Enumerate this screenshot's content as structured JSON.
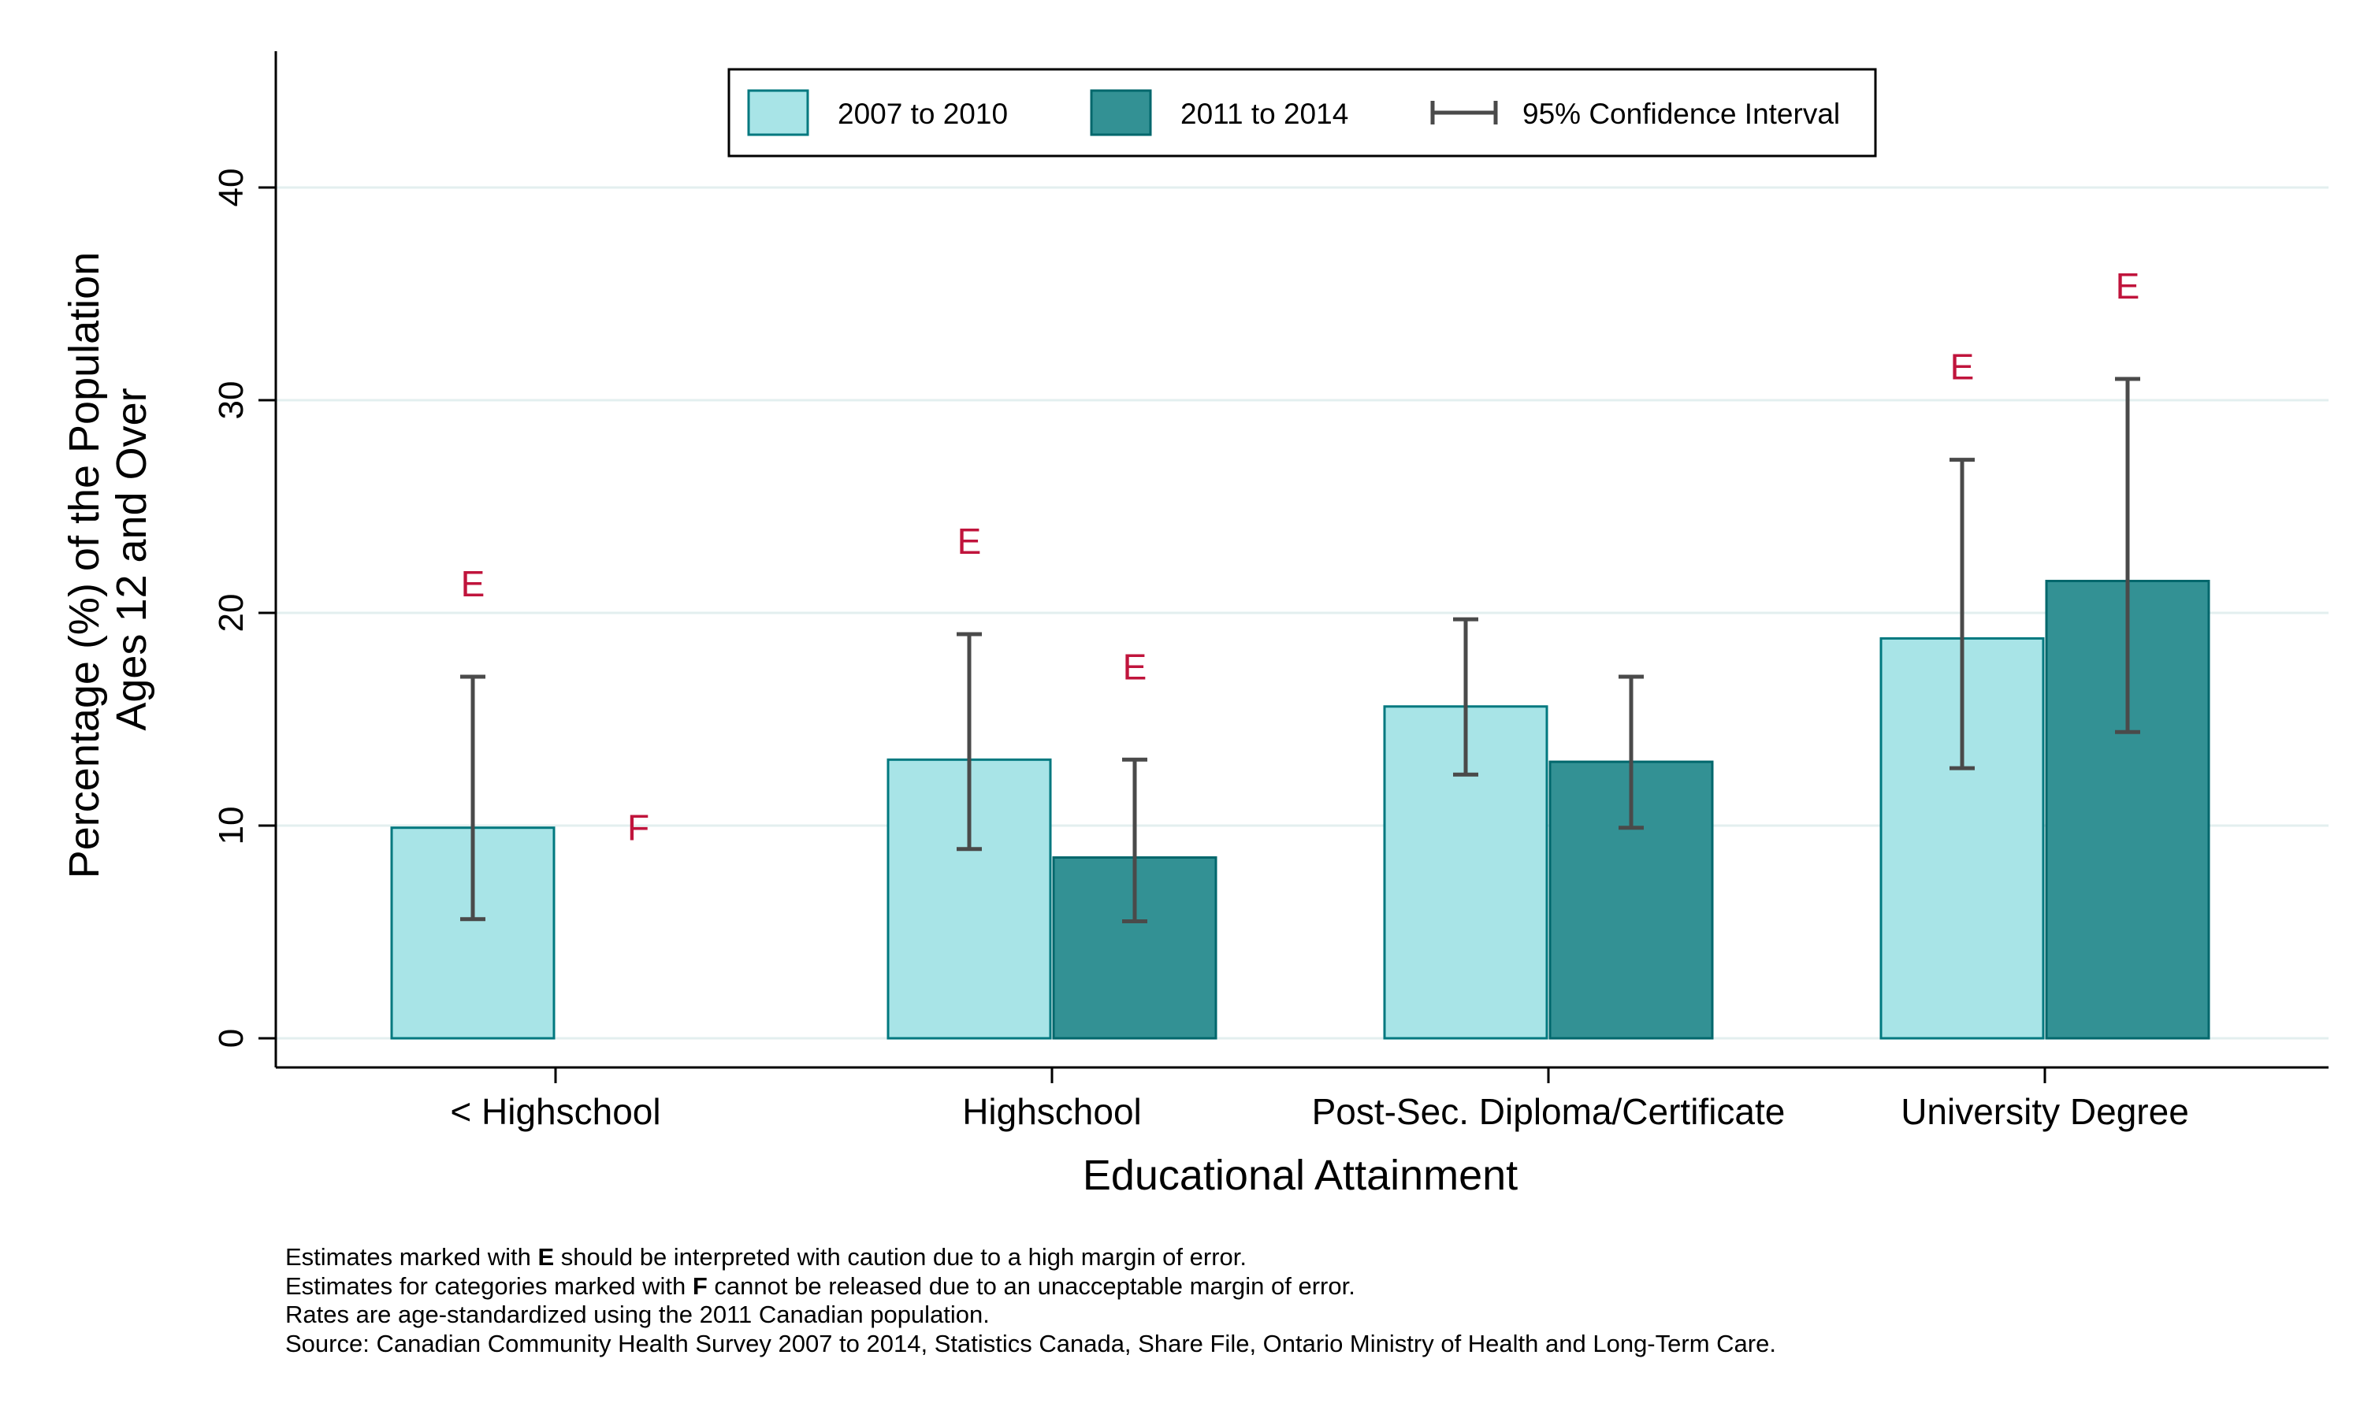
{
  "chart_data": {
    "type": "bar",
    "title": "",
    "xlabel": "Educational Attainment",
    "ylabel": [
      "Percentage (%) of the Population",
      "Ages 12 and Over"
    ],
    "ylim": [
      0,
      46
    ],
    "yticks": [
      0,
      10,
      20,
      30,
      40
    ],
    "grid": true,
    "legend_position": "top-center",
    "categories": [
      "< Highschool",
      "Highschool",
      "Post-Sec. Diploma/Certificate",
      "University Degree"
    ],
    "series": [
      {
        "name": "2007 to 2010",
        "color": "#a8e4e7",
        "edge": "#00787f",
        "values": [
          9.9,
          13.1,
          15.6,
          18.8
        ],
        "ci_low": [
          5.6,
          8.9,
          12.4,
          12.7
        ],
        "ci_high": [
          17.0,
          19.0,
          19.7,
          27.2
        ],
        "flags": [
          "E",
          "E",
          "",
          "E"
        ]
      },
      {
        "name": "2011 to 2014",
        "color": "#339194",
        "edge": "#00676c",
        "values": [
          null,
          8.5,
          13.0,
          21.5
        ],
        "ci_low": [
          null,
          5.5,
          9.9,
          14.4
        ],
        "ci_high": [
          null,
          13.1,
          17.0,
          31.0
        ],
        "flags": [
          "F",
          "E",
          "",
          "E"
        ]
      }
    ],
    "ci_legend_label": "95% Confidence Interval",
    "flag_color": "#c0143c"
  },
  "notes": {
    "line1": {
      "pre": "Estimates marked with ",
      "mark": "E",
      "post": " should be interpreted with caution due to a high margin of error."
    },
    "line2": {
      "pre": "Estimates for categories marked with ",
      "mark": "F",
      "post": " cannot be released due to an unacceptable margin of error."
    },
    "line3": "Rates are age-standardized using the 2011 Canadian population.",
    "line4": "Source: Canadian Community Health Survey 2007 to 2014, Statistics Canada, Share File, Ontario Ministry of Health and Long-Term Care."
  }
}
